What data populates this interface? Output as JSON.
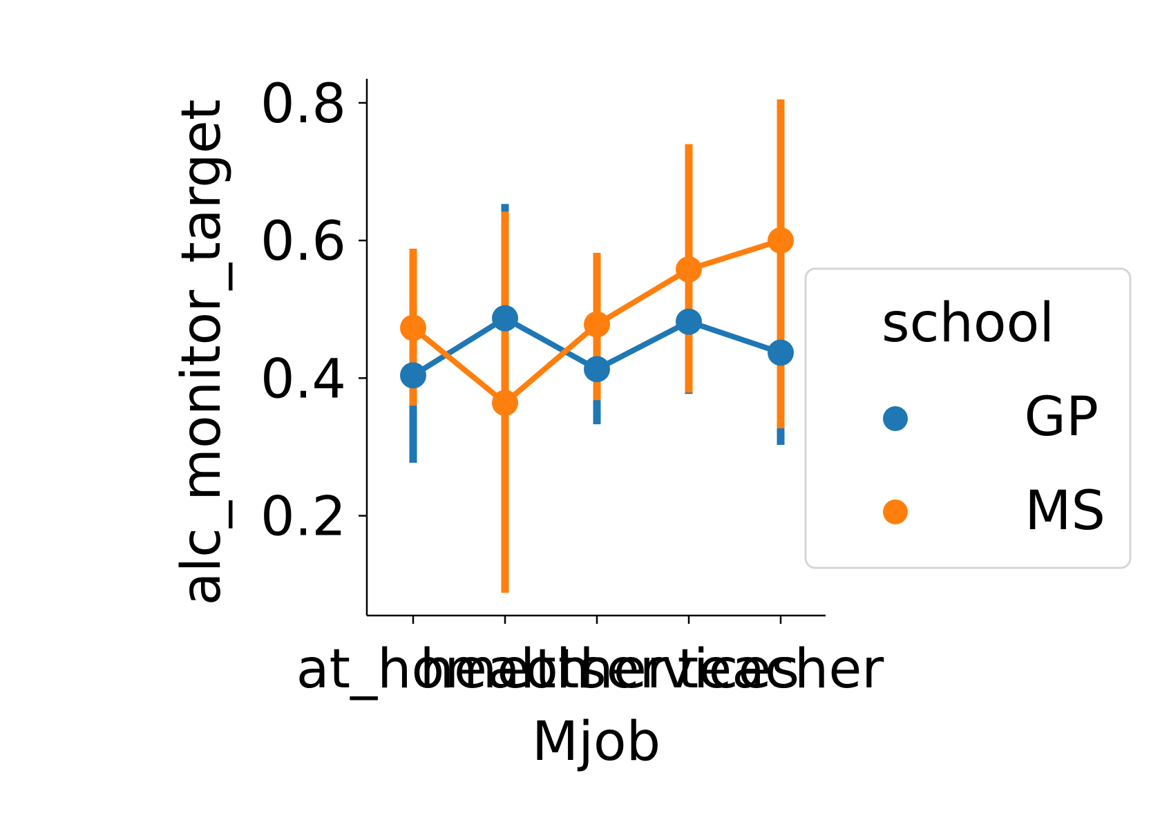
{
  "chart_data": {
    "type": "line",
    "categories": [
      "at_home",
      "health",
      "other",
      "services",
      "teacher"
    ],
    "xlabel": "Mjob",
    "ylabel": "alc_monitor_target",
    "yticks": [
      0.2,
      0.4,
      0.6,
      0.8
    ],
    "ylim": [
      0.055,
      0.835
    ],
    "grid": false,
    "legend": {
      "title": "school",
      "placement": "right"
    },
    "series": [
      {
        "name": "GP",
        "color": "#1f77b4",
        "values": [
          0.404,
          0.487,
          0.413,
          0.482,
          0.437
        ],
        "ci_low": [
          0.277,
          0.338,
          0.333,
          0.377,
          0.303
        ],
        "ci_high": [
          0.557,
          0.653,
          0.512,
          0.577,
          0.593
        ]
      },
      {
        "name": "MS",
        "color": "#ff7f0e",
        "values": [
          0.473,
          0.364,
          0.478,
          0.558,
          0.6
        ],
        "ci_low": [
          0.36,
          0.088,
          0.368,
          0.379,
          0.327
        ],
        "ci_high": [
          0.588,
          0.642,
          0.582,
          0.74,
          0.805
        ]
      }
    ]
  }
}
